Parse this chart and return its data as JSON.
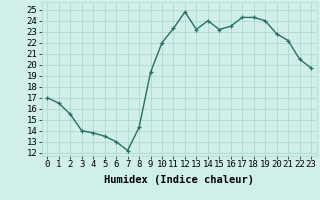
{
  "x": [
    0,
    1,
    2,
    3,
    4,
    5,
    6,
    7,
    8,
    9,
    10,
    11,
    12,
    13,
    14,
    15,
    16,
    17,
    18,
    19,
    20,
    21,
    22,
    23
  ],
  "y": [
    17.0,
    16.5,
    15.5,
    14.0,
    13.8,
    13.5,
    13.0,
    12.2,
    14.3,
    19.3,
    22.0,
    23.3,
    24.8,
    23.2,
    24.0,
    23.2,
    23.5,
    24.3,
    24.3,
    24.0,
    22.8,
    22.2,
    20.5,
    19.7
  ],
  "line_color": "#2a6e63",
  "marker": "+",
  "bg_color": "#d0efea",
  "grid_color": "#b0d8d2",
  "xlabel": "Humidex (Indice chaleur)",
  "ylabel_ticks": [
    12,
    13,
    14,
    15,
    16,
    17,
    18,
    19,
    20,
    21,
    22,
    23,
    24,
    25
  ],
  "ylim": [
    11.7,
    25.7
  ],
  "xlim": [
    -0.5,
    23.5
  ],
  "xticks": [
    0,
    1,
    2,
    3,
    4,
    5,
    6,
    7,
    8,
    9,
    10,
    11,
    12,
    13,
    14,
    15,
    16,
    17,
    18,
    19,
    20,
    21,
    22,
    23
  ],
  "xlabel_fontsize": 7.5,
  "tick_fontsize": 6.5,
  "linewidth": 1.0,
  "markersize": 3.5,
  "markeredgewidth": 0.9
}
